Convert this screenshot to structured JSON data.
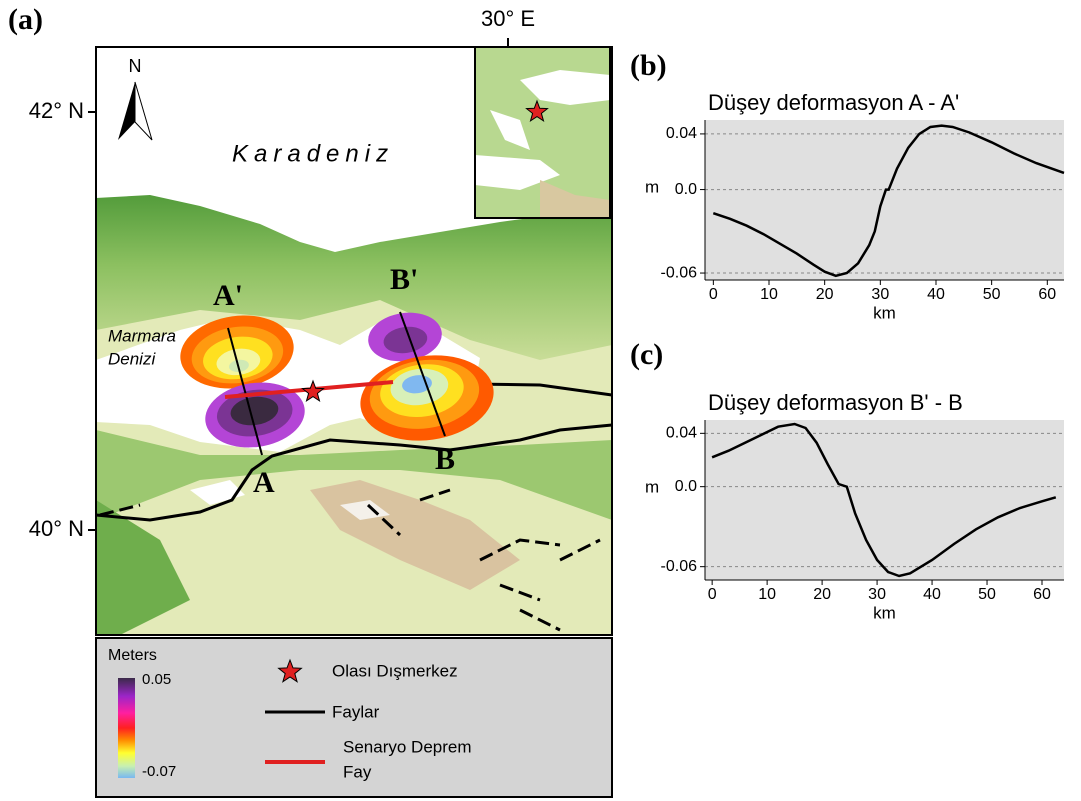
{
  "map": {
    "panel_label": "(a)",
    "lon_label": "30° E",
    "lat_labels": [
      "42° N",
      "40° N"
    ],
    "north": "N",
    "sea_label": "Karadeniz",
    "marmara": [
      "Marmara",
      "Denizi"
    ],
    "profiles": {
      "a_start": "A'",
      "a_end": "A",
      "b_start": "B'",
      "b_end": "B"
    },
    "legend": {
      "title": "Meters",
      "max": 0.05,
      "min": -0.07,
      "epicenter": "Olası Dışmerkez",
      "faults": "Faylar",
      "scenario": [
        "Senaryo Deprem",
        "Fay"
      ]
    }
  },
  "chart_data": [
    {
      "type": "line",
      "panel_label": "(b)",
      "title": "Düşey deformasyon A - A'",
      "xlabel": "km",
      "ylabel": "m",
      "color": "#000000",
      "grid": true,
      "x": [
        0,
        3,
        6,
        9,
        12,
        15,
        18,
        20,
        22,
        24,
        26,
        28,
        29,
        30,
        31,
        31.5,
        33,
        35,
        37,
        39,
        41,
        43,
        46,
        50,
        54,
        58,
        63
      ],
      "values": [
        -0.017,
        -0.021,
        -0.026,
        -0.032,
        -0.039,
        -0.046,
        -0.054,
        -0.059,
        -0.062,
        -0.06,
        -0.053,
        -0.04,
        -0.03,
        -0.012,
        0.0,
        0.0,
        0.015,
        0.03,
        0.04,
        0.045,
        0.046,
        0.045,
        0.041,
        0.034,
        0.026,
        0.019,
        0.012
      ],
      "xlim": [
        -1.5,
        63
      ],
      "xticks": [
        0,
        10,
        20,
        30,
        40,
        50,
        60
      ],
      "ylim": [
        -0.065,
        0.05
      ],
      "yticks": [
        0.04,
        {
          "value": 0,
          "label": "0.0"
        },
        -0.06
      ]
    },
    {
      "type": "line",
      "panel_label": "(c)",
      "title": "Düşey deformasyon B' - B",
      "xlabel": "km",
      "ylabel": "m",
      "color": "#000000",
      "grid": true,
      "x": [
        0,
        3,
        6,
        9,
        12,
        15,
        17,
        19,
        21,
        23,
        24.5,
        26,
        28,
        30,
        32,
        34,
        36,
        40,
        44,
        48,
        52,
        56,
        60,
        62.5
      ],
      "values": [
        0.022,
        0.027,
        0.033,
        0.039,
        0.045,
        0.047,
        0.044,
        0.033,
        0.017,
        0.002,
        0.0,
        -0.02,
        -0.04,
        -0.055,
        -0.064,
        -0.067,
        -0.065,
        -0.055,
        -0.043,
        -0.032,
        -0.023,
        -0.016,
        -0.011,
        -0.008
      ],
      "xlim": [
        -1.3,
        64
      ],
      "xticks": [
        0,
        10,
        20,
        30,
        40,
        50,
        60
      ],
      "ylim": [
        -0.07,
        0.05
      ],
      "yticks": [
        0.04,
        {
          "value": 0,
          "label": "0.0"
        },
        -0.06
      ]
    }
  ]
}
